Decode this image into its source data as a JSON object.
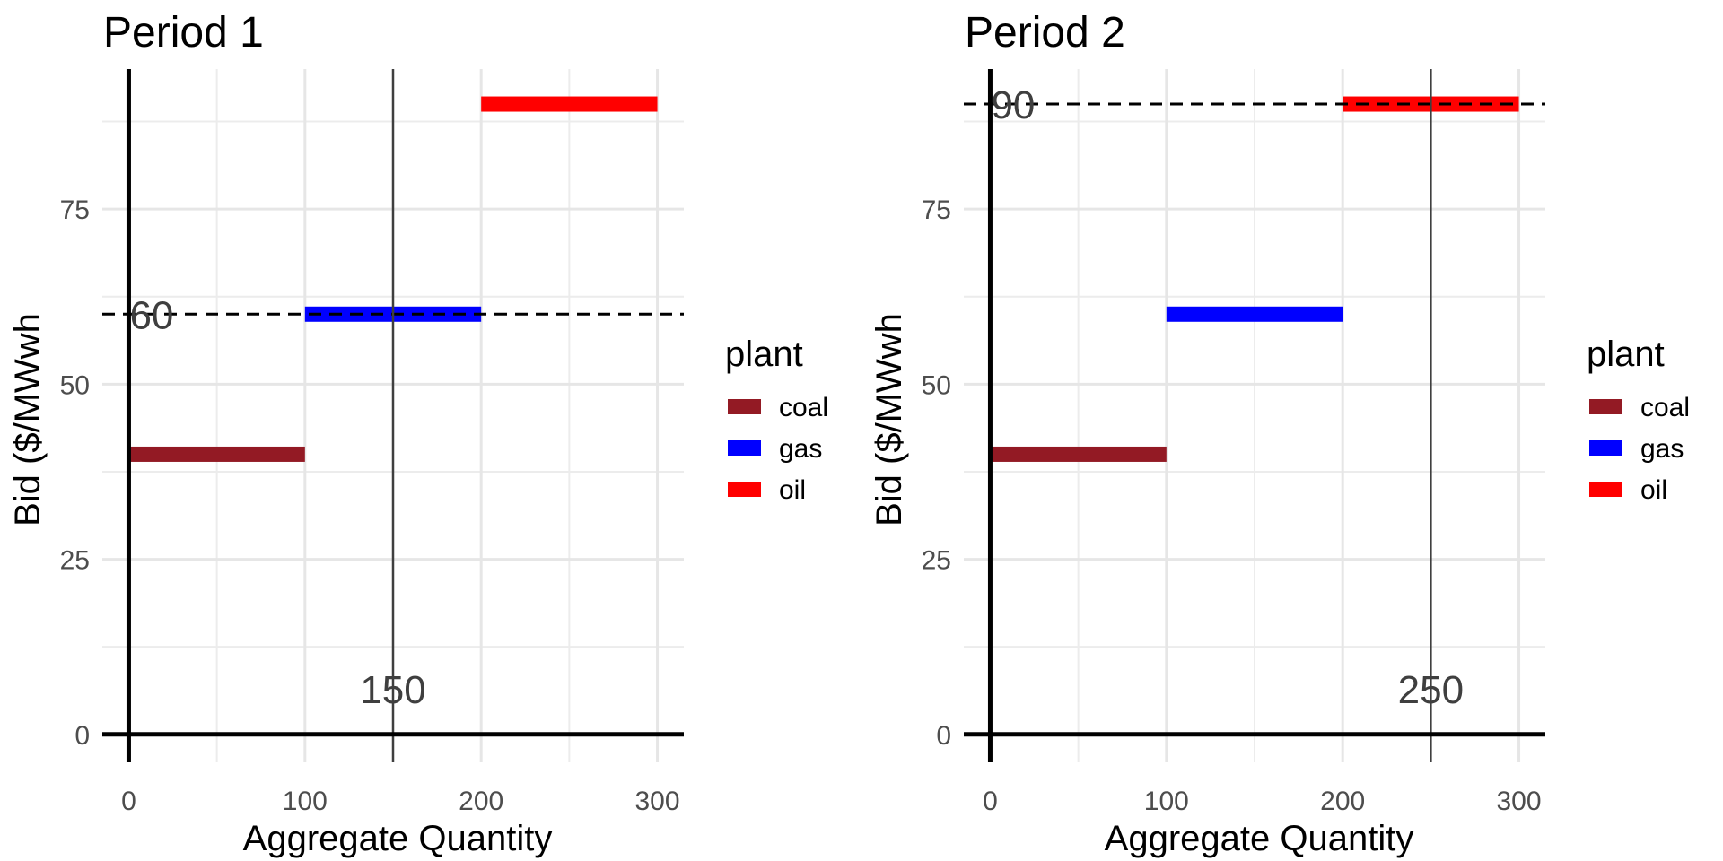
{
  "chart_data": [
    {
      "type": "bar",
      "subtype": "supply-curve-step",
      "title": "Period 1",
      "xlabel": "Aggregate Quantity",
      "ylabel": "Bid ($/MWwh",
      "xlim": [
        -15,
        315
      ],
      "ylim": [
        -4,
        95
      ],
      "x_ticks": [
        0,
        100,
        200,
        300
      ],
      "y_ticks": [
        0,
        25,
        50,
        75
      ],
      "grid": true,
      "segments": [
        {
          "plant": "coal",
          "x_start": 0,
          "x_end": 100,
          "bid": 40
        },
        {
          "plant": "gas",
          "x_start": 100,
          "x_end": 200,
          "bid": 60
        },
        {
          "plant": "oil",
          "x_start": 200,
          "x_end": 300,
          "bid": 90
        }
      ],
      "demand_quantity": 150,
      "demand_label": "150",
      "clearing_price": 60,
      "clearing_price_label": "60",
      "legend": {
        "title": "plant",
        "position": "right",
        "entries": [
          "coal",
          "gas",
          "oil"
        ]
      }
    },
    {
      "type": "bar",
      "subtype": "supply-curve-step",
      "title": "Period 2",
      "xlabel": "Aggregate Quantity",
      "ylabel": "Bid ($/MWwh",
      "xlim": [
        -15,
        315
      ],
      "ylim": [
        -4,
        95
      ],
      "x_ticks": [
        0,
        100,
        200,
        300
      ],
      "y_ticks": [
        0,
        25,
        50,
        75
      ],
      "grid": true,
      "segments": [
        {
          "plant": "coal",
          "x_start": 0,
          "x_end": 100,
          "bid": 40
        },
        {
          "plant": "gas",
          "x_start": 100,
          "x_end": 200,
          "bid": 60
        },
        {
          "plant": "oil",
          "x_start": 200,
          "x_end": 300,
          "bid": 90
        }
      ],
      "demand_quantity": 250,
      "demand_label": "250",
      "clearing_price": 90,
      "clearing_price_label": "90",
      "legend": {
        "title": "plant",
        "position": "right",
        "entries": [
          "coal",
          "gas",
          "oil"
        ]
      }
    }
  ],
  "colors": {
    "coal": "#931a24",
    "gas": "#0000ff",
    "oil": "#ff0000",
    "axis": "#000000",
    "demand_line": "#3f3f3f",
    "price_line": "#000000"
  }
}
